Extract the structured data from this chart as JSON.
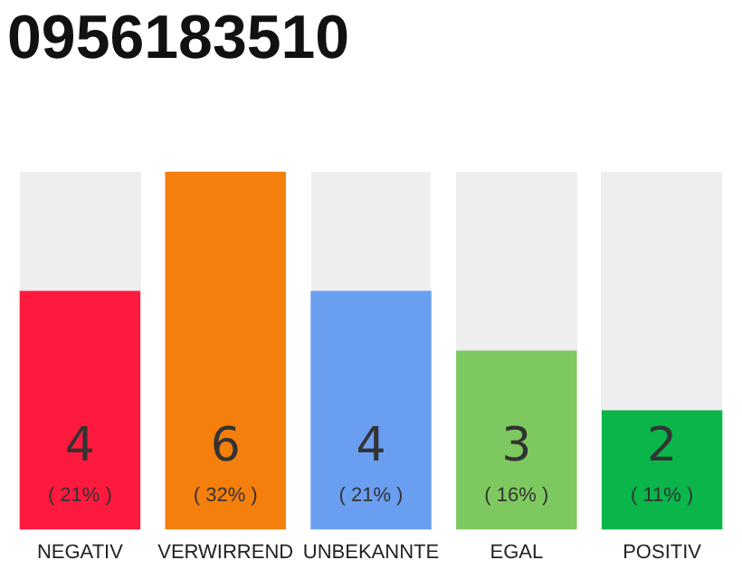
{
  "chart_data": {
    "type": "bar",
    "title": "0956183510",
    "categories": [
      "NEGATIV",
      "VERWIRREND",
      "UNBEKANNTE",
      "EGAL",
      "POSITIV"
    ],
    "values": [
      4,
      6,
      4,
      3,
      2
    ],
    "colors": [
      "#fe1a3e",
      "#f57f0c",
      "#6a9ef0",
      "#7ec95f",
      "#0ab54a"
    ],
    "ylim": [
      0,
      6
    ],
    "tick_labels": "x",
    "grid": false,
    "legend": false,
    "data_labels": true,
    "annotations": [
      "( 21% )",
      "( 32% )",
      "( 21% )",
      "( 16% )",
      "( 11% )"
    ]
  }
}
